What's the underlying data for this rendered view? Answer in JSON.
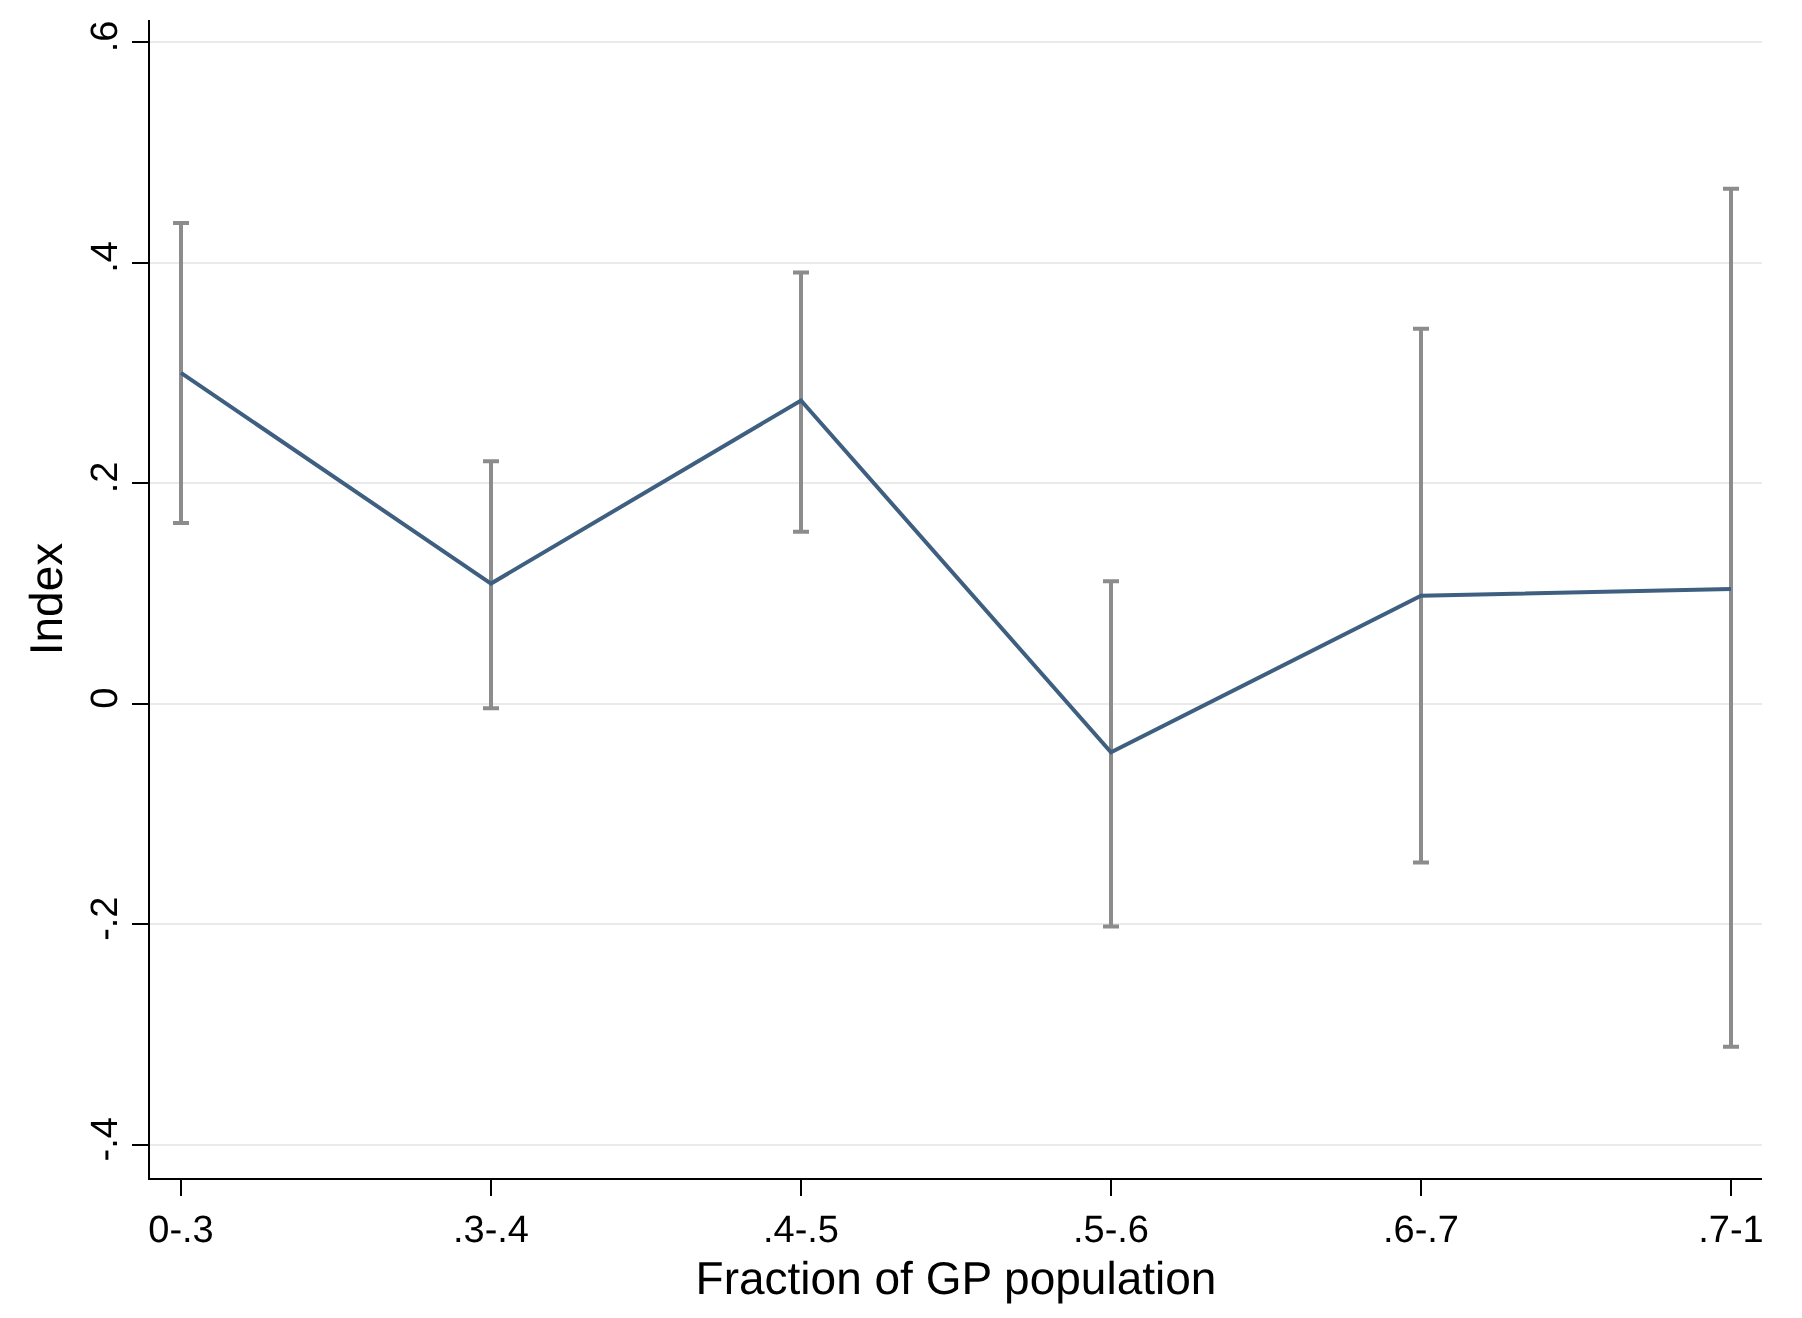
{
  "chart_data": {
    "type": "line",
    "xlabel": "Fraction of GP population",
    "ylabel": "Index",
    "categories": [
      "0-.3",
      ".3-.4",
      ".4-.5",
      ".5-.6",
      ".6-.7",
      ".7-1"
    ],
    "series": [
      {
        "color": "#3e5f80",
        "values": [
          0.3,
          0.109,
          0.275,
          -0.044,
          0.098,
          0.104
        ],
        "errors": [
          [
            0.164,
            0.436
          ],
          [
            -0.004,
            0.22
          ],
          [
            0.156,
            0.391
          ],
          [
            -0.202,
            0.111
          ],
          [
            -0.144,
            0.34
          ],
          [
            -0.311,
            0.467
          ]
        ]
      }
    ],
    "ylim": [
      -0.43,
      0.62
    ],
    "yticks": [
      {
        "value": -0.4,
        "label": "-.4"
      },
      {
        "value": -0.2,
        "label": "-.2"
      },
      0,
      {
        "value": 0.2,
        "label": ".2"
      },
      {
        "value": 0.4,
        "label": ".4"
      },
      {
        "value": 0.6,
        "label": ".6"
      }
    ],
    "grid": "y",
    "marker": "none",
    "line_style": "solid"
  }
}
